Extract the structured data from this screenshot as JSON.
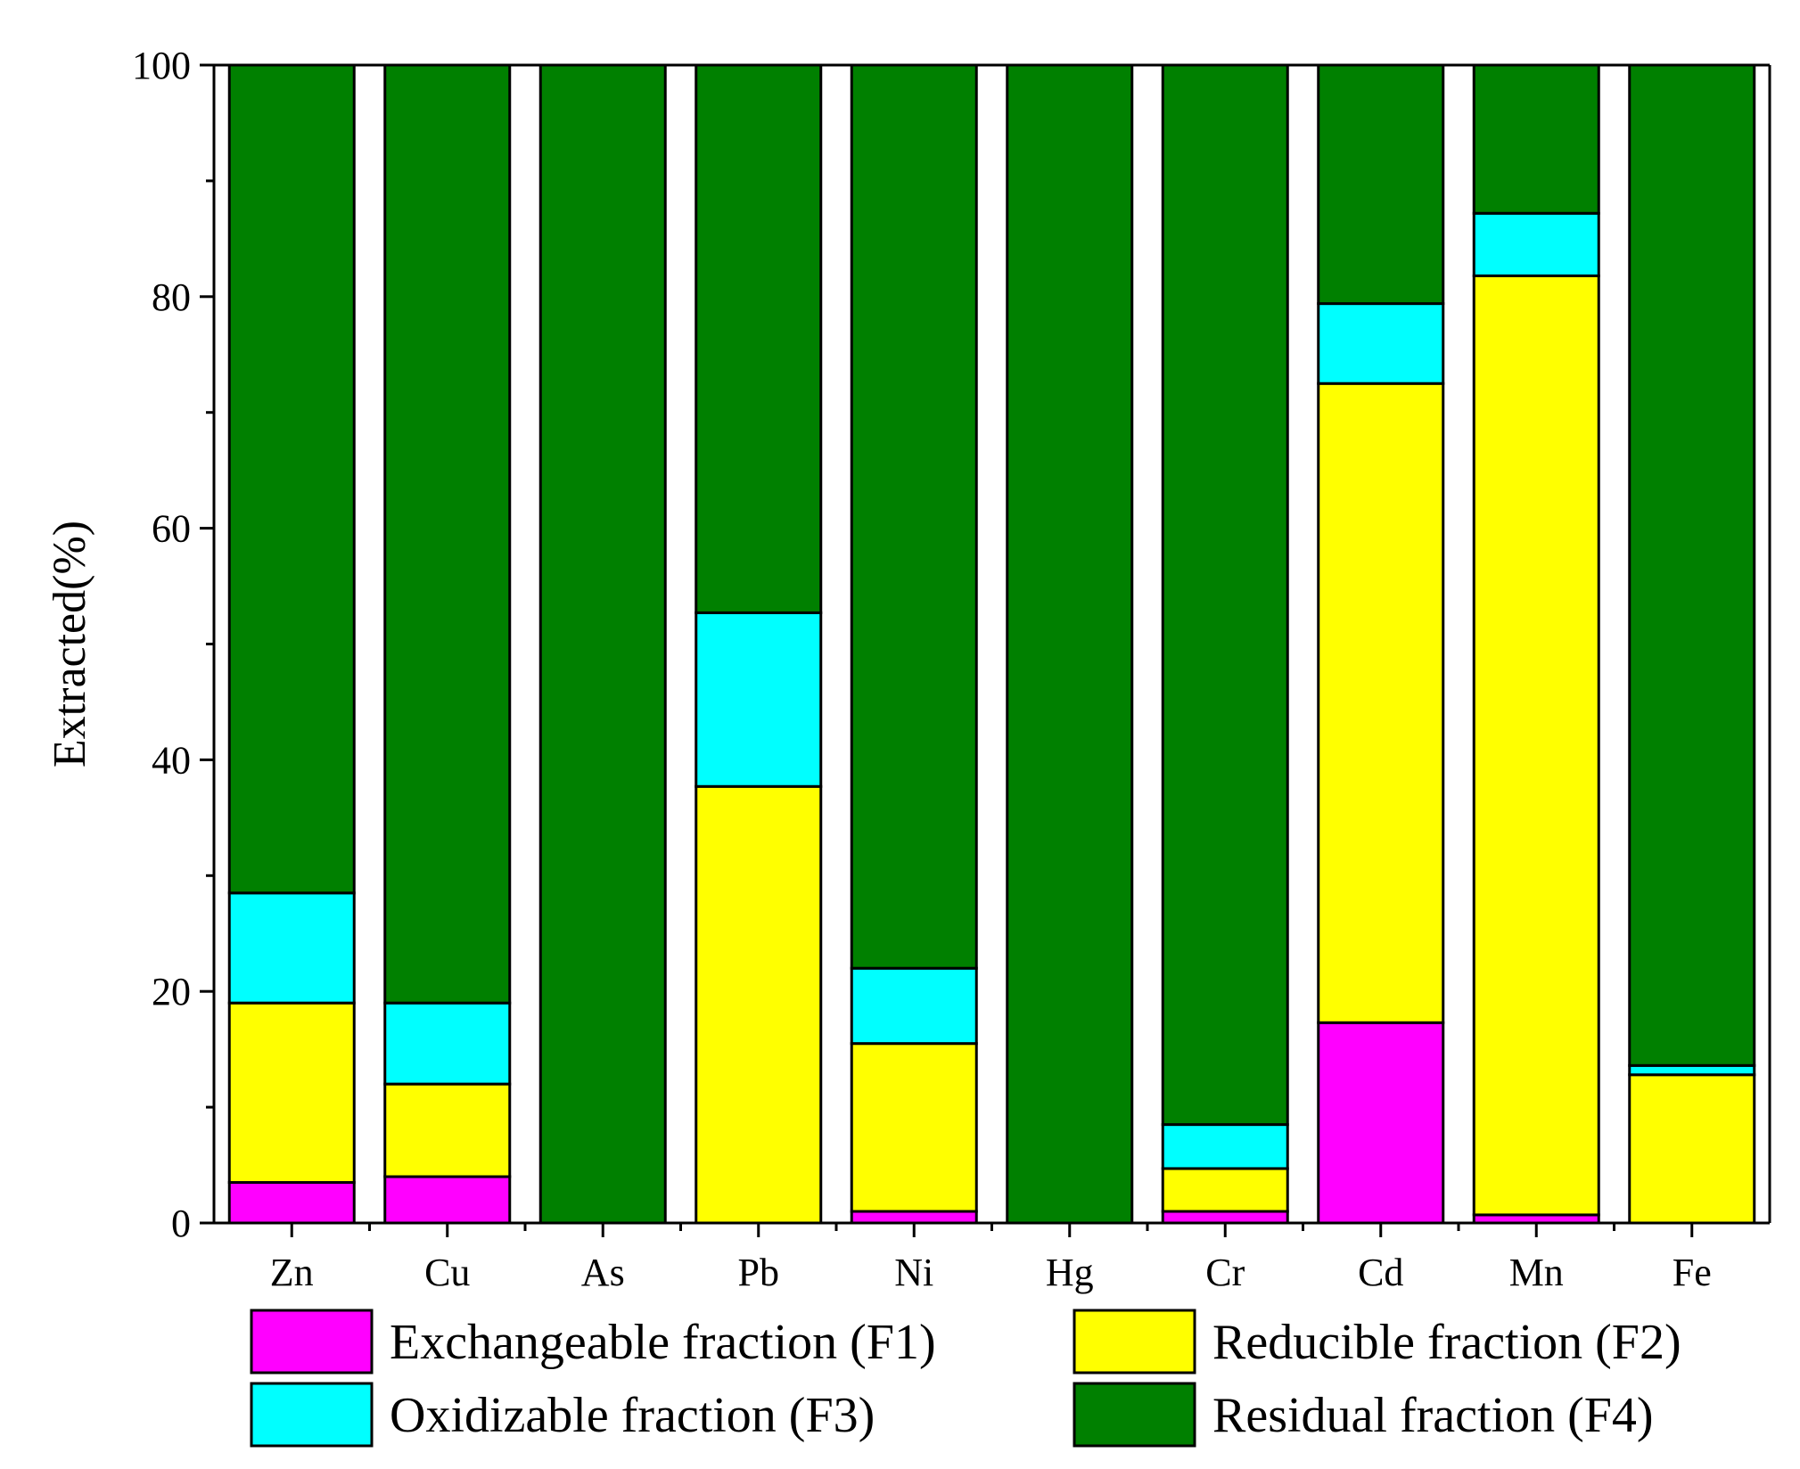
{
  "chart_data": {
    "type": "bar",
    "stacked": true,
    "title": "",
    "xlabel": "",
    "ylabel": "Extracted(%)",
    "ylim": [
      0,
      100
    ],
    "yticks": [
      "0",
      "20",
      "40",
      "60",
      "80",
      "100"
    ],
    "categories": [
      "Zn",
      "Cu",
      "As",
      "Pb",
      "Ni",
      "Hg",
      "Cr",
      "Cd",
      "Mn",
      "Fe"
    ],
    "series": [
      {
        "name": "Exchangeable fraction (F1)",
        "color": "#ff00ff",
        "values": [
          3.5,
          4,
          0,
          0,
          1,
          0,
          1,
          17.3,
          0.7,
          0
        ]
      },
      {
        "name": "Reducible fraction (F2)",
        "color": "#ffff00",
        "values": [
          15.5,
          8,
          0,
          37.7,
          14.5,
          0,
          3.7,
          55.2,
          81.1,
          12.8
        ]
      },
      {
        "name": "Oxidizable fraction (F3)",
        "color": "#00ffff",
        "values": [
          9.5,
          7,
          0,
          15,
          6.5,
          0,
          3.8,
          6.9,
          5.4,
          0.8
        ]
      },
      {
        "name": "Residual fraction (F4)",
        "color": "#008000",
        "values": [
          71.5,
          81,
          100,
          47.3,
          78,
          100,
          91.5,
          20.6,
          12.8,
          86.4
        ]
      }
    ],
    "legend_position": "bottom"
  }
}
